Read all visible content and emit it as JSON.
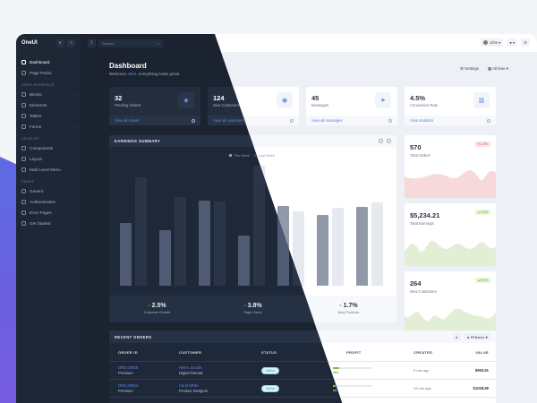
{
  "app": {
    "name": "OneUI"
  },
  "header": {
    "search_placeholder": "Search..",
    "user": "John",
    "user_chevron": "▾",
    "bell_chevron": "▾"
  },
  "sidebar": {
    "items": [
      {
        "label": "Dashboard",
        "active": true,
        "icon": "speedometer-icon"
      },
      {
        "label": "Page Packs",
        "icon": "packs-icon"
      }
    ],
    "sections": [
      {
        "title": "User Interface",
        "items": [
          {
            "label": "Blocks",
            "icon": "energy-icon"
          },
          {
            "label": "Elements",
            "icon": "badge-icon"
          },
          {
            "label": "Tables",
            "icon": "grid-icon"
          },
          {
            "label": "Forms",
            "icon": "note-icon"
          }
        ]
      },
      {
        "title": "Develop",
        "items": [
          {
            "label": "Components",
            "icon": "wrench-icon"
          },
          {
            "label": "Layout",
            "icon": "magic-wand-icon"
          },
          {
            "label": "Multi Level Menu",
            "icon": "puzzle-icon"
          }
        ]
      },
      {
        "title": "Pages",
        "items": [
          {
            "label": "Generic",
            "icon": "layers-icon"
          },
          {
            "label": "Authentication",
            "icon": "lock-icon"
          },
          {
            "label": "Error Pages",
            "icon": "fire-icon"
          },
          {
            "label": "Get Started",
            "icon": "cup-icon"
          }
        ]
      }
    ]
  },
  "page": {
    "title": "Dashboard",
    "welcome_prefix": "Welcome ",
    "welcome_name": "John",
    "welcome_suffix": ", everything looks great.",
    "settings_label": "Settings",
    "range_label": "All time"
  },
  "stats": [
    {
      "value": "32",
      "label": "Pending Orders",
      "link": "View all orders",
      "icon": "diamond-icon"
    },
    {
      "value": "124",
      "label": "New Customers",
      "link": "View all customers",
      "icon": "user-circle-icon"
    },
    {
      "value": "45",
      "label": "Messages",
      "link": "View all messages",
      "icon": "paper-plane-icon"
    },
    {
      "value": "4.5%",
      "label": "Conversion Rate",
      "link": "View statistics",
      "icon": "chart-icon"
    }
  ],
  "earnings": {
    "title": "EARNINGS SUMMARY",
    "legend": [
      "This Week",
      "Last Week"
    ],
    "footer": [
      {
        "sign": "-",
        "value": "2.5%",
        "label": "Customer Growth",
        "trend": "up"
      },
      {
        "sign": "-",
        "value": "3.8%",
        "label": "Page Views",
        "trend": "up"
      },
      {
        "sign": "-",
        "value": "1.7%",
        "label": "New Products",
        "trend": "down"
      }
    ]
  },
  "chart_data": {
    "type": "bar",
    "title": "Earnings Summary",
    "categories": [
      "1",
      "2",
      "3",
      "4",
      "5",
      "6",
      "7"
    ],
    "series": [
      {
        "name": "This Week",
        "values": [
          55,
          49,
          75,
          44,
          70,
          62,
          69
        ]
      },
      {
        "name": "Last Week",
        "values": [
          95,
          78,
          74,
          105,
          65,
          68,
          73
        ]
      }
    ],
    "ylim": [
      0,
      110
    ],
    "grid": false,
    "legend_position": "top"
  },
  "side_cards": [
    {
      "value": "570",
      "label": "Total Orders",
      "badge": "▾ 2.2%",
      "trend": "down"
    },
    {
      "value": "$5,234.21",
      "label": "Total Earnings",
      "badge": "▴ 4.2%",
      "trend": "up"
    },
    {
      "value": "264",
      "label": "New Customers",
      "badge": "▴ 9.3%",
      "trend": "up"
    }
  ],
  "orders": {
    "title": "RECENT ORDERS",
    "filters_label": "Filters",
    "columns": [
      "ORDER ID",
      "CUSTOMER",
      "STATUS",
      "PROFIT",
      "CREATED",
      "VALUE"
    ],
    "rows": [
      {
        "id": "ORD.00925",
        "type": "Premium",
        "customer": "Helen Jacobs",
        "role": "Digital Nomad",
        "status": "Active",
        "profit": "16%",
        "profit_pct": 16,
        "created": "5 min ago",
        "value": "$992,61"
      },
      {
        "id": "ORD.00924",
        "type": "Premium",
        "customer": "Carol White",
        "role": "Product Designer",
        "status": "Active",
        "profit": "6%",
        "profit_pct": 6,
        "created": "19 min ago",
        "value": "$1028,99"
      }
    ]
  },
  "colors": {
    "accent": "#5b86e5",
    "dark_bg": "#1b2331",
    "light_bg": "#edf0f5",
    "up": "#7cc234",
    "down": "#e04646"
  }
}
